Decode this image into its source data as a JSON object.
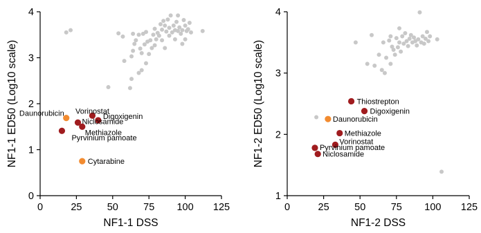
{
  "chart_data": [
    {
      "type": "scatter",
      "xlabel": "NF1-1 DSS",
      "ylabel": "NF1-1 ED50 (Log10 scale)",
      "xlim": [
        0,
        125
      ],
      "ylim": [
        0,
        4
      ],
      "xticks": [
        0,
        25,
        50,
        75,
        100,
        125
      ],
      "yticks": [
        0,
        1,
        2,
        3,
        4
      ],
      "grid": false,
      "colors": {
        "background": "#c8c8c8",
        "highlight": "#a01c1f",
        "special": "#f28b30"
      },
      "background_points": [
        [
          18,
          3.55
        ],
        [
          21,
          3.6
        ],
        [
          47,
          2.36
        ],
        [
          54,
          3.53
        ],
        [
          57,
          3.46
        ],
        [
          58,
          2.93
        ],
        [
          62,
          2.34
        ],
        [
          63,
          2.54
        ],
        [
          63,
          3.03
        ],
        [
          64,
          3.15
        ],
        [
          64,
          3.52
        ],
        [
          65,
          3.3
        ],
        [
          66,
          3.38
        ],
        [
          68,
          3.5
        ],
        [
          68,
          2.67
        ],
        [
          69,
          3.2
        ],
        [
          70,
          2.73
        ],
        [
          70,
          3.1
        ],
        [
          71,
          3.52
        ],
        [
          72,
          3.29
        ],
        [
          73,
          3.56
        ],
        [
          73,
          2.88
        ],
        [
          74,
          3.35
        ],
        [
          75,
          3.08
        ],
        [
          76,
          3.38
        ],
        [
          77,
          3.21
        ],
        [
          78,
          3.5
        ],
        [
          79,
          3.63
        ],
        [
          79,
          3.27
        ],
        [
          80,
          3.4
        ],
        [
          81,
          3.54
        ],
        [
          82,
          3.48
        ],
        [
          83,
          3.73
        ],
        [
          84,
          3.61
        ],
        [
          84,
          3.38
        ],
        [
          85,
          3.8
        ],
        [
          86,
          3.7
        ],
        [
          86,
          3.21
        ],
        [
          87,
          3.57
        ],
        [
          88,
          3.83
        ],
        [
          89,
          3.48
        ],
        [
          89,
          3.65
        ],
        [
          90,
          3.92
        ],
        [
          91,
          3.55
        ],
        [
          92,
          3.7
        ],
        [
          93,
          3.6
        ],
        [
          93,
          3.4
        ],
        [
          94,
          3.78
        ],
        [
          95,
          3.92
        ],
        [
          95,
          3.58
        ],
        [
          96,
          3.66
        ],
        [
          97,
          3.52
        ],
        [
          98,
          3.6
        ],
        [
          98,
          3.3
        ],
        [
          99,
          3.82
        ],
        [
          100,
          3.7
        ],
        [
          100,
          3.4
        ],
        [
          101,
          3.58
        ],
        [
          102,
          3.62
        ],
        [
          103,
          3.76
        ],
        [
          104,
          3.55
        ],
        [
          112,
          3.58
        ]
      ],
      "highlighted_points": [
        {
          "label": "Daunorubicin",
          "x": 18,
          "y": 1.69,
          "color": "#f28b30"
        },
        {
          "label": "Vorinostat",
          "x": 36,
          "y": 1.74,
          "color": "#a01c1f"
        },
        {
          "label": "Digoxigenin",
          "x": 40,
          "y": 1.64,
          "color": "#a01c1f"
        },
        {
          "label": "Niclosamide",
          "x": 26,
          "y": 1.59,
          "color": "#a01c1f"
        },
        {
          "label": "Methiazole",
          "x": 29,
          "y": 1.5,
          "color": "#a01c1f"
        },
        {
          "label": "Pyrvinium pamoate",
          "x": 15,
          "y": 1.41,
          "color": "#a01c1f"
        },
        {
          "label": "Cytarabine",
          "x": 29,
          "y": 0.75,
          "color": "#f28b30"
        }
      ]
    },
    {
      "type": "scatter",
      "xlabel": "NF1-2 DSS",
      "ylabel": "NF1-2 ED50 (Log10 scale)",
      "xlim": [
        0,
        125
      ],
      "ylim": [
        1,
        4
      ],
      "xticks": [
        0,
        25,
        50,
        75,
        100,
        125
      ],
      "yticks": [
        1,
        2,
        3,
        4
      ],
      "grid": false,
      "colors": {
        "background": "#c8c8c8",
        "highlight": "#a01c1f",
        "special": "#f28b30"
      },
      "background_points": [
        [
          20,
          2.28
        ],
        [
          47,
          3.5
        ],
        [
          55,
          3.15
        ],
        [
          58,
          3.62
        ],
        [
          60,
          3.12
        ],
        [
          63,
          3.3
        ],
        [
          65,
          3.05
        ],
        [
          66,
          3.5
        ],
        [
          67,
          3.0
        ],
        [
          68,
          3.25
        ],
        [
          70,
          3.53
        ],
        [
          71,
          3.6
        ],
        [
          71,
          3.15
        ],
        [
          72,
          3.43
        ],
        [
          73,
          3.38
        ],
        [
          74,
          3.3
        ],
        [
          75,
          3.57
        ],
        [
          76,
          3.42
        ],
        [
          77,
          3.73
        ],
        [
          77,
          3.5
        ],
        [
          78,
          3.35
        ],
        [
          79,
          3.6
        ],
        [
          80,
          3.48
        ],
        [
          81,
          3.65
        ],
        [
          82,
          3.52
        ],
        [
          83,
          3.44
        ],
        [
          84,
          3.56
        ],
        [
          85,
          3.62
        ],
        [
          86,
          3.5
        ],
        [
          87,
          3.58
        ],
        [
          88,
          3.52
        ],
        [
          89,
          3.45
        ],
        [
          90,
          3.55
        ],
        [
          91,
          3.99
        ],
        [
          92,
          3.5
        ],
        [
          93,
          3.6
        ],
        [
          94,
          3.48
        ],
        [
          95,
          3.56
        ],
        [
          96,
          3.67
        ],
        [
          97,
          3.52
        ],
        [
          98,
          3.6
        ],
        [
          103,
          3.55
        ],
        [
          106,
          1.39
        ]
      ],
      "highlighted_points": [
        {
          "label": "Thiostrepton",
          "x": 44,
          "y": 2.54,
          "color": "#a01c1f"
        },
        {
          "label": "Digoxigenin",
          "x": 53,
          "y": 2.38,
          "color": "#a01c1f"
        },
        {
          "label": "Daunorubicin",
          "x": 28,
          "y": 2.25,
          "color": "#f28b30"
        },
        {
          "label": "Methiazole",
          "x": 36,
          "y": 2.02,
          "color": "#a01c1f"
        },
        {
          "label": "Vorinostat",
          "x": 33,
          "y": 1.83,
          "color": "#a01c1f"
        },
        {
          "label": "Pyrvinium pamoate",
          "x": 19,
          "y": 1.78,
          "color": "#a01c1f"
        },
        {
          "label": "Niclosamide",
          "x": 21,
          "y": 1.68,
          "color": "#a01c1f"
        }
      ]
    }
  ]
}
